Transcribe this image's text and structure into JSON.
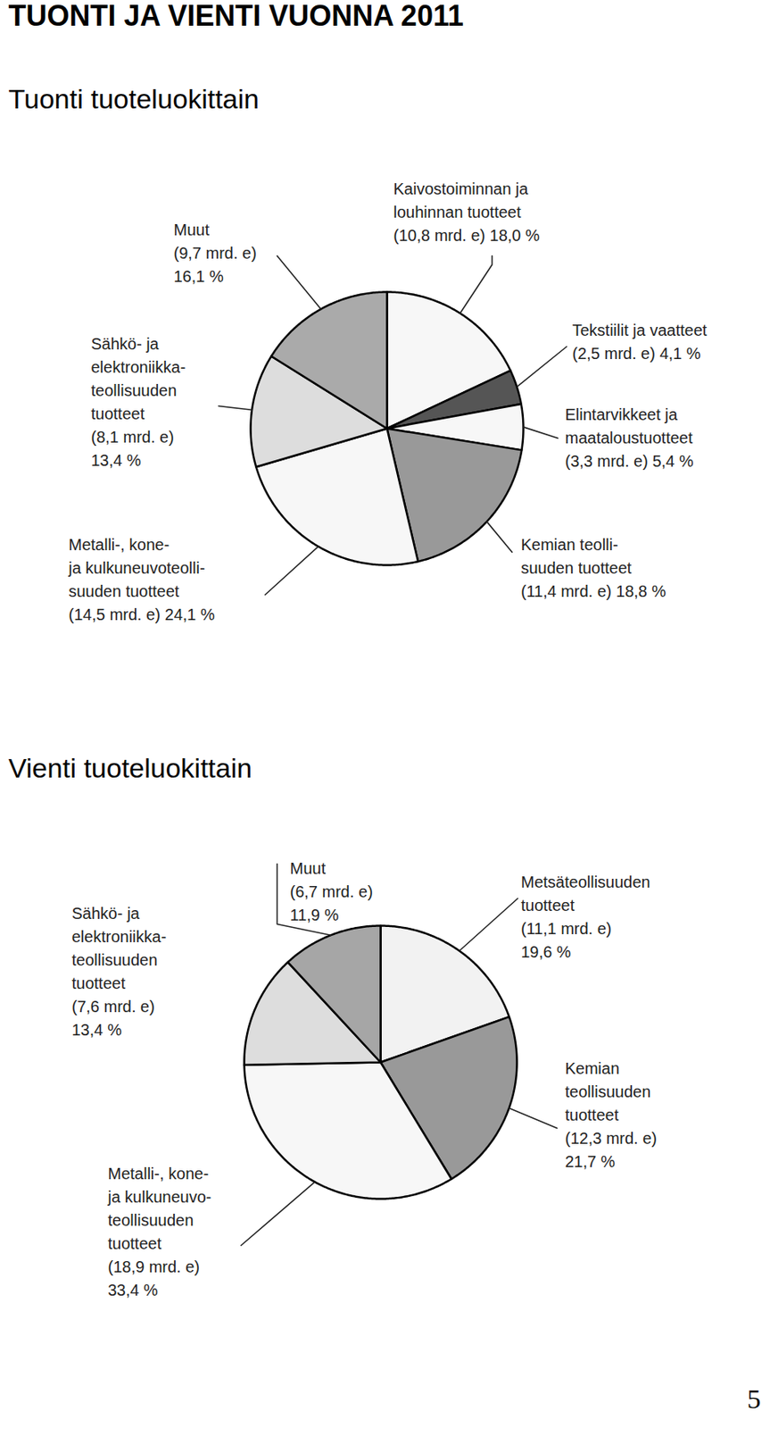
{
  "page": {
    "heading": "TUONTI JA VIENTI VUONNA 2011",
    "page_number": "5"
  },
  "chart_data": [
    {
      "type": "pie",
      "title": "Tuonti tuoteluokittain",
      "categories": [
        "Kaivostoiminnan ja\nlouhinnan tuotteet",
        "Tekstiilit ja vaatteet",
        "Elintarvikkeet ja\nmaataloustuotteet",
        "Kemian teolli-\nsuuden tuotteet",
        "Metalli-, kone-\nja kulkuneuvoteolli-\nsuuden tuotteet",
        "Sähkö- ja\nelektroniikka-\nteollisuuden\ntuotteet",
        "Muut"
      ],
      "values": [
        18.0,
        4.1,
        5.4,
        18.8,
        24.1,
        13.4,
        16.1
      ],
      "value_labels": [
        "(10,8 mrd. e) 18,0 %",
        "(2,5 mrd. e) 4,1 %",
        "(3,3 mrd. e) 5,4 %",
        "(11,4 mrd. e) 18,8 %",
        "(14,5 mrd. e) 24,1 %",
        "(8,1 mrd. e)\n13,4 %",
        "(9,7 mrd. e)\n16,1 %"
      ],
      "colors": [
        "#f7f7f7",
        "#555555",
        "#f7f7f7",
        "#999999",
        "#f7f7f7",
        "#dddddd",
        "#aaaaaa"
      ],
      "data_labels": true
    },
    {
      "type": "pie",
      "title": "Vienti tuoteluokittain",
      "categories": [
        "Metsäteollisuuden\ntuotteet",
        "Kemian\nteollisuuden\ntuotteet",
        "Metalli-, kone-\nja kulkuneuvo-\nteollisuuden\ntuotteet",
        "Sähkö- ja\nelektroniikka-\nteollisuuden\ntuotteet",
        "Muut"
      ],
      "values": [
        19.6,
        21.7,
        33.4,
        13.4,
        11.9
      ],
      "value_labels": [
        "(11,1 mrd. e)\n19,6 %",
        "(12,3 mrd. e)\n21,7 %",
        "(18,9 mrd. e)\n33,4 %",
        "(7,6 mrd. e)\n13,4 %",
        "(6,7 mrd. e)\n11,9 %"
      ],
      "colors": [
        "#f2f2f2",
        "#999999",
        "#f7f7f7",
        "#dddddd",
        "#a6a6a6"
      ],
      "data_labels": true
    }
  ]
}
